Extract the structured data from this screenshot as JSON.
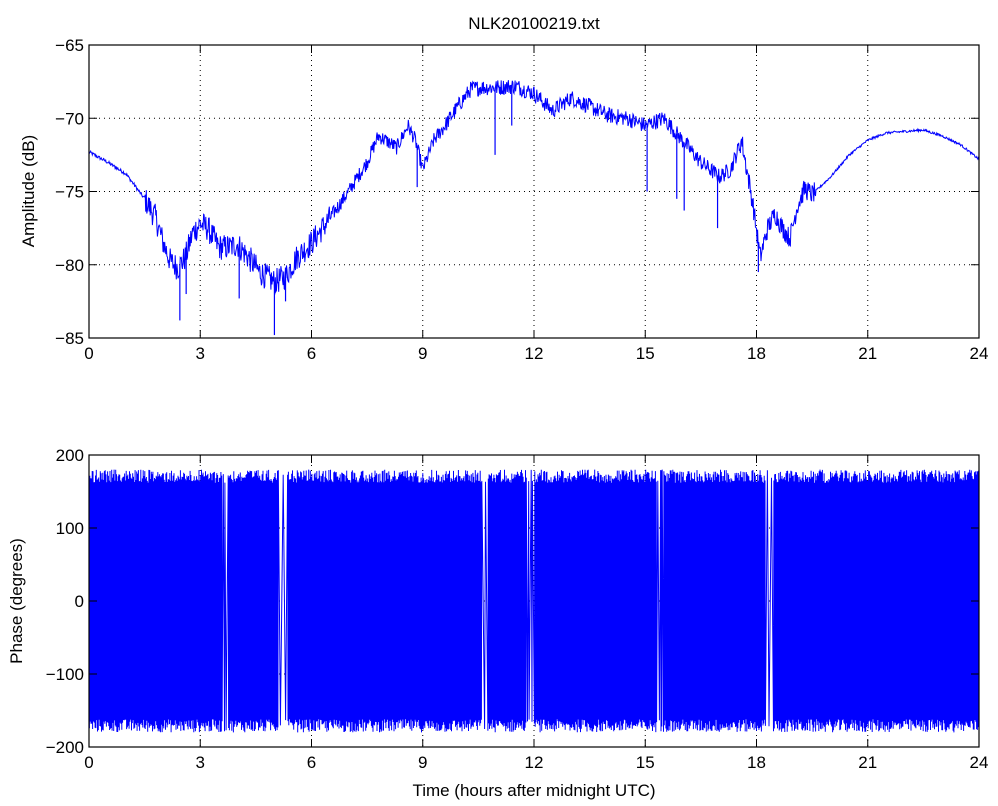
{
  "chart_data": [
    {
      "type": "line",
      "title": "NLK20100219.txt",
      "xlabel": "",
      "ylabel": "Amplitude (dB)",
      "xlim": [
        0,
        24
      ],
      "ylim": [
        -85,
        -65
      ],
      "xticks": [
        0,
        3,
        6,
        9,
        12,
        15,
        18,
        21,
        24
      ],
      "yticks": [
        -85,
        -80,
        -75,
        -70,
        -65
      ],
      "grid": true,
      "series": [
        {
          "color": "#0000ff",
          "x": [
            0,
            0.5,
            1,
            1.5,
            1.8,
            2.0,
            2.2,
            2.4,
            2.6,
            2.8,
            3.0,
            3.2,
            3.5,
            3.8,
            4.0,
            4.3,
            4.6,
            5.0,
            5.3,
            5.6,
            6.0,
            6.5,
            7.0,
            7.5,
            7.8,
            8.0,
            8.3,
            8.6,
            8.8,
            9.0,
            9.3,
            9.6,
            10.0,
            10.3,
            10.6,
            11.0,
            11.5,
            12.0,
            12.5,
            13.0,
            13.5,
            14.0,
            14.5,
            15.0,
            15.5,
            16.0,
            16.5,
            17.0,
            17.3,
            17.6,
            17.9,
            18.1,
            18.3,
            18.5,
            18.7,
            18.9,
            19.1,
            19.3,
            19.5,
            20.0,
            20.5,
            21.0,
            21.5,
            22.0,
            22.5,
            23.0,
            23.5,
            24.0
          ],
          "y": [
            -72.3,
            -73.0,
            -73.8,
            -75.5,
            -76.8,
            -78.5,
            -79.8,
            -80.2,
            -79.5,
            -77.8,
            -77.2,
            -77.5,
            -78.8,
            -78.8,
            -78.6,
            -79.5,
            -80.5,
            -81.2,
            -80.8,
            -79.5,
            -78.5,
            -76.8,
            -75.0,
            -73.0,
            -71.2,
            -71.5,
            -72.0,
            -70.5,
            -71.5,
            -73.5,
            -71.5,
            -70.5,
            -69.0,
            -68.0,
            -67.9,
            -67.9,
            -67.8,
            -68.3,
            -69.5,
            -68.6,
            -69.2,
            -69.8,
            -70.0,
            -70.5,
            -70.0,
            -71.5,
            -73.0,
            -74.0,
            -73.5,
            -71.5,
            -75.8,
            -79.5,
            -77.5,
            -76.5,
            -77.5,
            -78.2,
            -76.0,
            -74.8,
            -75.2,
            -74.0,
            -72.5,
            -71.5,
            -71.0,
            -70.9,
            -70.8,
            -71.2,
            -71.8,
            -72.8
          ]
        }
      ],
      "spikes": [
        {
          "x": 2.45,
          "y": -83.8
        },
        {
          "x": 2.62,
          "y": -82.0
        },
        {
          "x": 4.05,
          "y": -82.3
        },
        {
          "x": 5.0,
          "y": -84.8
        },
        {
          "x": 5.3,
          "y": -82.5
        },
        {
          "x": 8.85,
          "y": -74.7
        },
        {
          "x": 10.95,
          "y": -72.5
        },
        {
          "x": 11.4,
          "y": -70.5
        },
        {
          "x": 15.05,
          "y": -75.0
        },
        {
          "x": 15.85,
          "y": -75.5
        },
        {
          "x": 16.05,
          "y": -76.3
        },
        {
          "x": 16.95,
          "y": -77.5
        },
        {
          "x": 18.05,
          "y": -80.5
        }
      ]
    },
    {
      "type": "line",
      "title": "",
      "xlabel": "Time (hours after midnight UTC)",
      "ylabel": "Phase (degrees)",
      "xlim": [
        0,
        24
      ],
      "ylim": [
        -200,
        200
      ],
      "xticks": [
        0,
        3,
        6,
        9,
        12,
        15,
        18,
        21,
        24
      ],
      "yticks": [
        -200,
        -100,
        0,
        100,
        200
      ],
      "grid": true,
      "series": [
        {
          "color": "#0000ff",
          "description_free": true,
          "x_range": [
            0,
            24
          ],
          "y_range": [
            -180,
            180
          ],
          "gaps": [
            [
              3.6,
              3.75
            ],
            [
              5.1,
              5.35
            ],
            [
              10.6,
              10.75
            ],
            [
              11.8,
              12.0
            ],
            [
              15.3,
              15.5
            ],
            [
              18.25,
              18.45
            ]
          ]
        }
      ]
    }
  ]
}
